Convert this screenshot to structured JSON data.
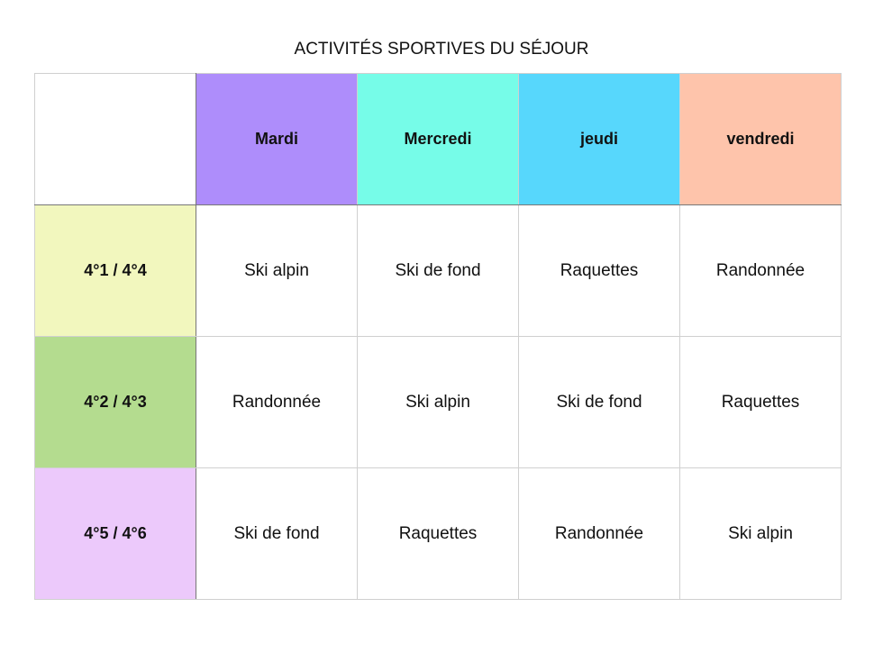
{
  "title": "ACTIVITÉS SPORTIVES DU SÉJOUR",
  "days": [
    {
      "label": "Mardi",
      "color": "#ae8dfb"
    },
    {
      "label": "Mercredi",
      "color": "#76fce8"
    },
    {
      "label": "jeudi",
      "color": "#57d7fc"
    },
    {
      "label": "vendredi",
      "color": "#fec4ab"
    }
  ],
  "rows": [
    {
      "group": "4°1 / 4°4",
      "color": "#f2f7be",
      "cells": [
        "Ski alpin",
        "Ski de fond",
        "Raquettes",
        "Randonnée"
      ]
    },
    {
      "group": "4°2 / 4°3",
      "color": "#b4dc8f",
      "cells": [
        "Randonnée",
        "Ski alpin",
        "Ski de fond",
        "Raquettes"
      ]
    },
    {
      "group": "4°5 / 4°6",
      "color": "#ecc9fb",
      "cells": [
        "Ski de fond",
        "Raquettes",
        "Randonnée",
        "Ski alpin"
      ]
    }
  ]
}
